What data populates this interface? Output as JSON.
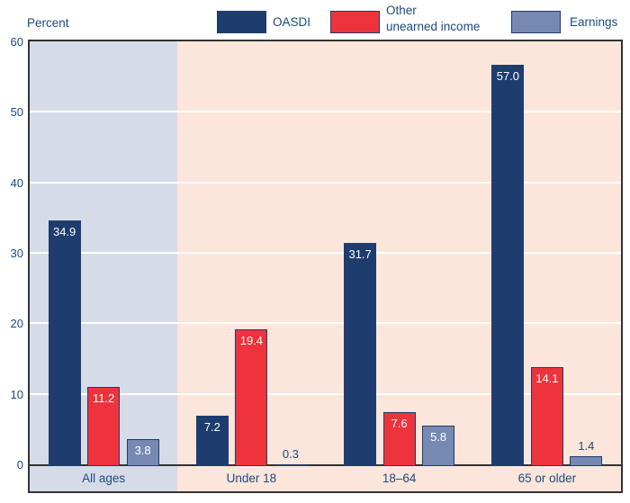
{
  "header": {
    "percent_label": "Percent"
  },
  "legend": [
    {
      "name": "oasdi",
      "line1": "OASDI",
      "line2": "",
      "color": "#1e3c6d"
    },
    {
      "name": "other-unearned-income",
      "line1": "Other",
      "line2": "unearned income",
      "color": "#ee333c"
    },
    {
      "name": "earnings",
      "line1": "Earnings",
      "line2": "",
      "color": "#7589b2"
    }
  ],
  "chart_data": {
    "type": "bar",
    "categories": [
      "All ages",
      "Under 18",
      "18–64",
      "65 or older"
    ],
    "series": [
      {
        "name": "OASDI",
        "color": "#1e3c6d",
        "values": [
          34.9,
          7.2,
          31.7,
          57.0
        ]
      },
      {
        "name": "Other unearned income",
        "color": "#ee333c",
        "values": [
          11.2,
          19.4,
          7.6,
          14.1
        ]
      },
      {
        "name": "Earnings",
        "color": "#7589b2",
        "values": [
          3.8,
          0.3,
          5.8,
          1.4
        ]
      }
    ],
    "ylabel": "Percent",
    "ylim": [
      0,
      60
    ],
    "yticks": [
      0,
      10,
      20,
      30,
      40,
      50,
      60
    ],
    "grid": true,
    "gridline_color": "#ffffff",
    "legend_position": "top",
    "value_labels": true,
    "highlight_band": {
      "category": "All ages",
      "color": "#d6dbe8"
    },
    "plot_background": "#fce5da",
    "bar_border_color": "#1e3c6d",
    "frame_border_color": "#333333",
    "axis_text_color": "#1b4b80"
  }
}
